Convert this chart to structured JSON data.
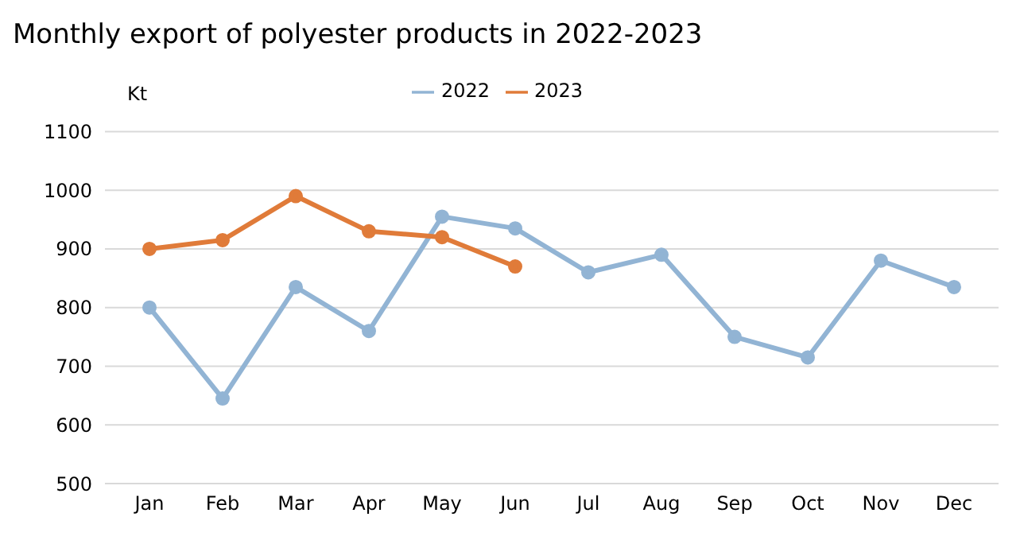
{
  "chart_data": {
    "type": "line",
    "title": "Monthly export of polyester products in 2022-2023",
    "ylabel": "Kt",
    "categories": [
      "Jan",
      "Feb",
      "Mar",
      "Apr",
      "May",
      "Jun",
      "Jul",
      "Aug",
      "Sep",
      "Oct",
      "Nov",
      "Dec"
    ],
    "series": [
      {
        "name": "2022",
        "color": "#92b4d4",
        "values": [
          800,
          645,
          835,
          760,
          955,
          935,
          860,
          890,
          750,
          715,
          880,
          835
        ]
      },
      {
        "name": "2023",
        "color": "#e07b39",
        "values": [
          900,
          915,
          990,
          930,
          920,
          870,
          null,
          null,
          null,
          null,
          null,
          null
        ]
      }
    ],
    "ylim": [
      500,
      1100
    ],
    "yticks": [
      500,
      600,
      700,
      800,
      900,
      1000,
      1100
    ],
    "grid": "y",
    "legend": "top",
    "marker": "circle",
    "line_style": "solid"
  }
}
